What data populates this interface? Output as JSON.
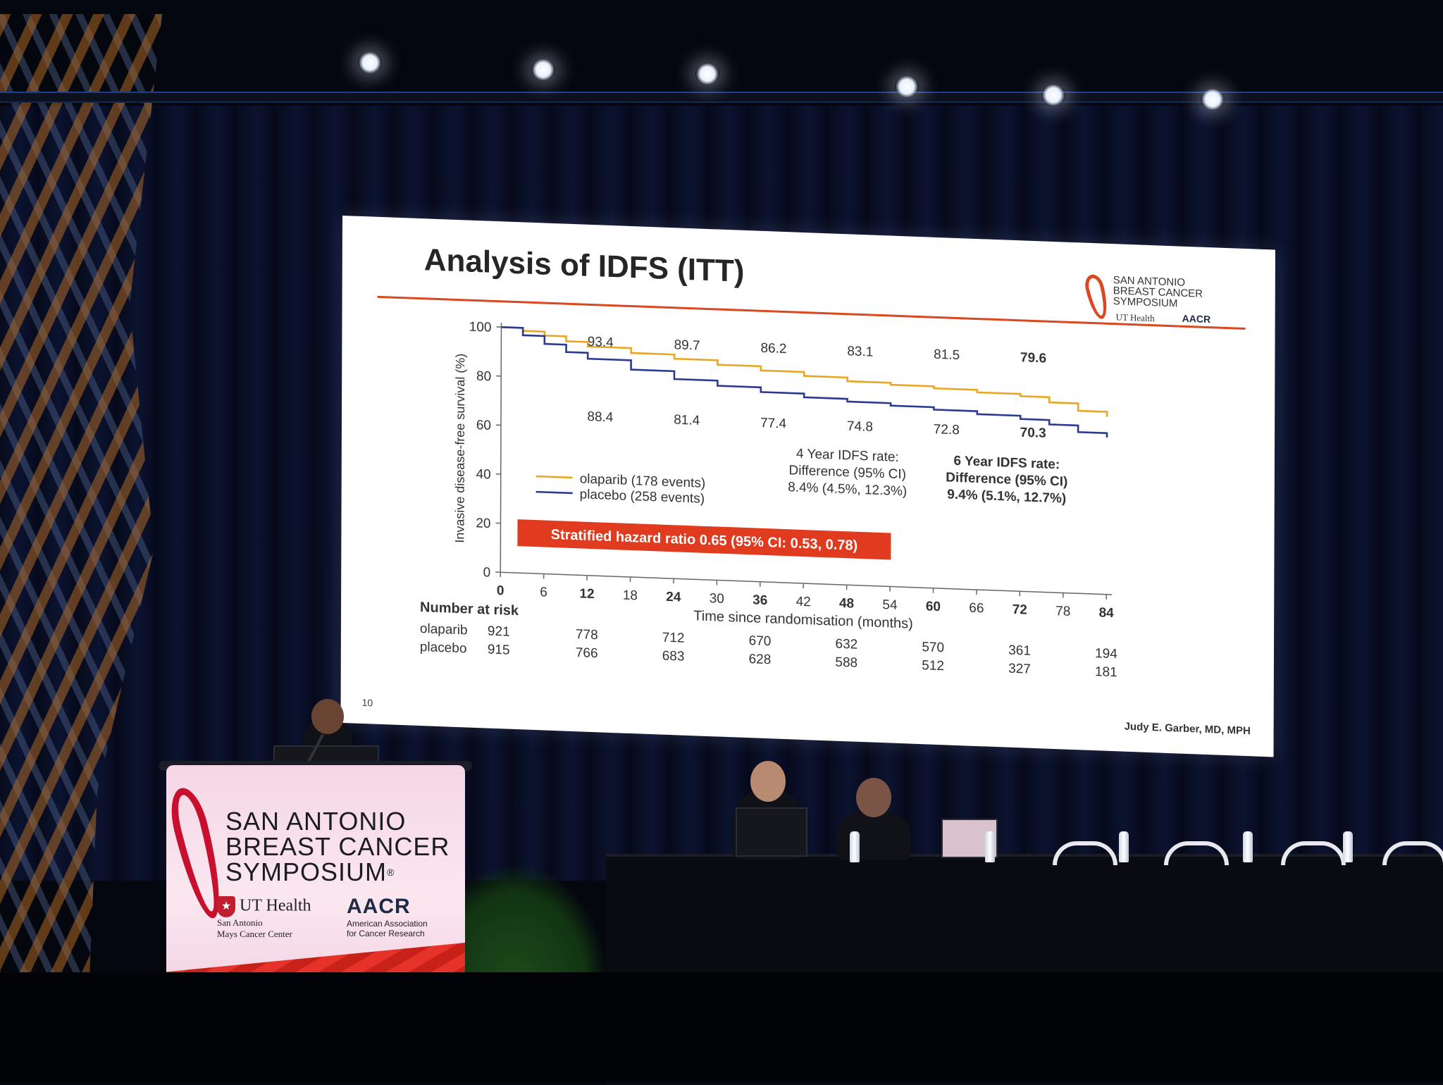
{
  "slide": {
    "title": "Analysis of IDFS (ITT)",
    "page_number": "10",
    "author": "Judy E. Garber, MD, MPH",
    "logo": {
      "line1": "SAN ANTONIO",
      "line2": "BREAST CANCER",
      "line3": "SYMPOSIUM",
      "ut": "UT Health",
      "aacr": "AACR"
    }
  },
  "podium": {
    "line1": "SAN ANTONIO",
    "line2": "BREAST CANCER",
    "line3": "SYMPOSIUM",
    "registered": "®",
    "ut_health": "UT Health",
    "ut_sub1": "San Antonio",
    "ut_sub2": "Mays Cancer Center",
    "aacr": "AACR",
    "aacr_sub1": "American Association",
    "aacr_sub2": "for Cancer Research"
  },
  "chart_data": {
    "type": "line",
    "title": "Analysis of IDFS (ITT)",
    "xlabel": "Time since randomisation (months)",
    "ylabel": "Invasive disease-free survival (%)",
    "xlim": [
      0,
      84
    ],
    "ylim": [
      0,
      100
    ],
    "x_ticks": [
      0,
      6,
      12,
      18,
      24,
      30,
      36,
      42,
      48,
      54,
      60,
      66,
      72,
      78,
      84
    ],
    "x_ticks_bold": [
      0,
      12,
      24,
      36,
      48,
      60,
      72,
      84
    ],
    "y_ticks": [
      0,
      20,
      40,
      60,
      80,
      100
    ],
    "colors": {
      "olaparib": "#e8a623",
      "placebo": "#2b3a93",
      "hr_box": "#e03b1e"
    },
    "series": [
      {
        "name": "olaparib (178 events)",
        "key": "olaparib",
        "x": [
          0,
          3,
          6,
          9,
          12,
          18,
          24,
          30,
          36,
          42,
          48,
          54,
          60,
          66,
          72,
          76,
          80,
          84
        ],
        "values": [
          100,
          98.8,
          97.2,
          95.2,
          93.4,
          91.4,
          89.7,
          87.9,
          86.2,
          84.6,
          83.1,
          82.3,
          81.5,
          80.5,
          79.6,
          77.5,
          74.5,
          72.5
        ]
      },
      {
        "name": "placebo (258 events)",
        "key": "placebo",
        "x": [
          0,
          3,
          6,
          9,
          12,
          18,
          24,
          30,
          36,
          42,
          48,
          54,
          60,
          66,
          72,
          76,
          80,
          84
        ],
        "values": [
          100,
          97.0,
          93.8,
          90.8,
          88.4,
          84.6,
          81.4,
          79.3,
          77.4,
          75.9,
          74.8,
          73.8,
          72.8,
          71.6,
          70.3,
          68.5,
          65.8,
          64.0
        ]
      }
    ],
    "olaparib_labels": [
      {
        "x": 12,
        "text": "93.4",
        "bold": false
      },
      {
        "x": 24,
        "text": "89.7",
        "bold": false
      },
      {
        "x": 36,
        "text": "86.2",
        "bold": false
      },
      {
        "x": 48,
        "text": "83.1",
        "bold": false
      },
      {
        "x": 60,
        "text": "81.5",
        "bold": false
      },
      {
        "x": 72,
        "text": "79.6",
        "bold": true
      }
    ],
    "placebo_labels": [
      {
        "x": 12,
        "text": "88.4",
        "bold": false
      },
      {
        "x": 24,
        "text": "81.4",
        "bold": false
      },
      {
        "x": 36,
        "text": "77.4",
        "bold": false
      },
      {
        "x": 48,
        "text": "74.8",
        "bold": false
      },
      {
        "x": 60,
        "text": "72.8",
        "bold": false
      },
      {
        "x": 72,
        "text": "70.3",
        "bold": true
      }
    ],
    "legend": [
      "olaparib (178 events)",
      "placebo (258 events)"
    ],
    "legend_placement": "lower-left",
    "annotations": {
      "four_year": [
        "4 Year IDFS rate:",
        "Difference (95% CI)",
        "8.4% (4.5%, 12.3%)"
      ],
      "six_year": [
        "6 Year IDFS rate:",
        "Difference (95% CI)",
        "9.4% (5.1%, 12.7%)"
      ],
      "hazard_ratio": "Stratified hazard ratio 0.65 (95% CI: 0.53, 0.78)"
    },
    "risk_table": {
      "header": "Number at risk",
      "x": [
        0,
        12,
        24,
        36,
        48,
        60,
        72,
        84
      ],
      "rows": [
        {
          "label": "olaparib",
          "values": [
            "921",
            "778",
            "712",
            "670",
            "632",
            "570",
            "361",
            "194"
          ]
        },
        {
          "label": "placebo",
          "values": [
            "915",
            "766",
            "683",
            "628",
            "588",
            "512",
            "327",
            "181"
          ]
        }
      ]
    }
  }
}
